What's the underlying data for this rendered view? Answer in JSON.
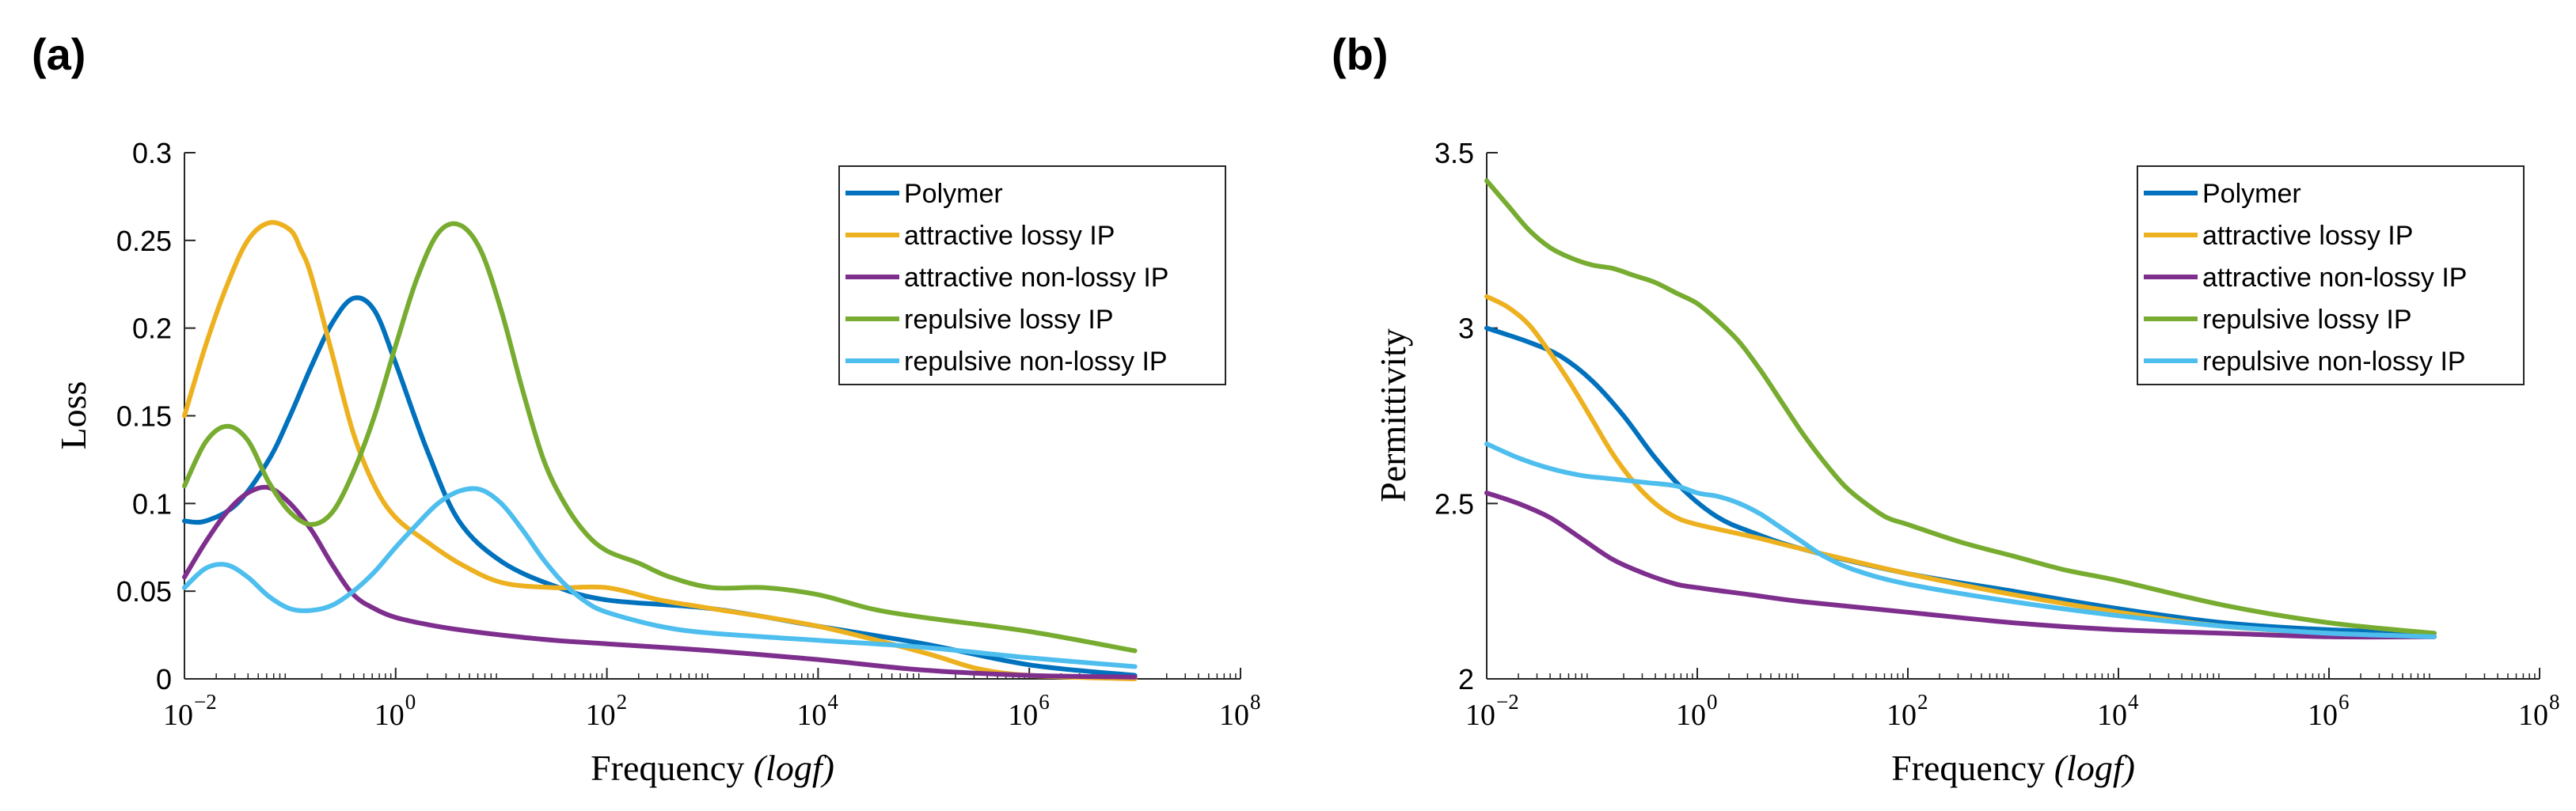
{
  "chart_data": [
    {
      "panel": "(a)",
      "type": "line",
      "xscale": "log",
      "xlabel": "Frequency",
      "xlabel_math": "(logf)",
      "ylabel": "Loss",
      "xlim_log10": [
        -2,
        8
      ],
      "xticks": [
        {
          "base": "10",
          "exp": "−2"
        },
        {
          "base": "10",
          "exp": "0"
        },
        {
          "base": "10",
          "exp": "2"
        },
        {
          "base": "10",
          "exp": "4"
        },
        {
          "base": "10",
          "exp": "6"
        },
        {
          "base": "10",
          "exp": "8"
        }
      ],
      "ylim": [
        0,
        0.3
      ],
      "yticks": [
        0,
        0.05,
        0.1,
        0.15,
        0.2,
        0.25,
        0.3
      ],
      "yticklabels": [
        "0",
        "0.05",
        "0.1",
        "0.15",
        "0.2",
        "0.25",
        "0.3"
      ],
      "legend_position": "top-right",
      "series": [
        {
          "name": "Polymer",
          "color": "#0072BD",
          "log10_x": [
            -2,
            -1.8,
            -1.5,
            -1.2,
            -1,
            -0.8,
            -0.6,
            -0.4,
            -0.2,
            0,
            0.3,
            0.6,
            1,
            1.5,
            2,
            3,
            4,
            5,
            6,
            7
          ],
          "y": [
            0.09,
            0.09,
            0.1,
            0.125,
            0.15,
            0.178,
            0.203,
            0.217,
            0.21,
            0.18,
            0.13,
            0.09,
            0.067,
            0.053,
            0.045,
            0.04,
            0.03,
            0.02,
            0.008,
            0.002
          ]
        },
        {
          "name": "attractive lossy IP",
          "color": "#EDB120",
          "log10_x": [
            -2,
            -1.8,
            -1.6,
            -1.4,
            -1.2,
            -1,
            -0.9,
            -0.8,
            -0.6,
            -0.4,
            -0.2,
            0,
            0.3,
            0.6,
            1,
            1.5,
            2,
            2.5,
            3,
            4,
            5,
            5.5,
            6,
            7
          ],
          "y": [
            0.15,
            0.19,
            0.224,
            0.25,
            0.26,
            0.256,
            0.245,
            0.23,
            0.185,
            0.14,
            0.11,
            0.092,
            0.078,
            0.066,
            0.055,
            0.052,
            0.052,
            0.045,
            0.04,
            0.03,
            0.015,
            0.006,
            0.002,
            0
          ]
        },
        {
          "name": "attractive non-lossy IP",
          "color": "#7E2F8E",
          "log10_x": [
            -2,
            -1.8,
            -1.6,
            -1.4,
            -1.2,
            -1,
            -0.8,
            -0.6,
            -0.4,
            -0.2,
            0,
            0.3,
            0.6,
            1,
            1.5,
            2,
            3,
            4,
            5,
            6,
            7
          ],
          "y": [
            0.058,
            0.078,
            0.095,
            0.106,
            0.109,
            0.1,
            0.085,
            0.065,
            0.048,
            0.04,
            0.035,
            0.031,
            0.028,
            0.025,
            0.022,
            0.02,
            0.016,
            0.011,
            0.005,
            0.002,
            0.001
          ]
        },
        {
          "name": "repulsive lossy IP",
          "color": "#77AC30",
          "log10_x": [
            -2,
            -1.8,
            -1.6,
            -1.4,
            -1.2,
            -1,
            -0.8,
            -0.6,
            -0.4,
            -0.2,
            0,
            0.2,
            0.4,
            0.6,
            0.8,
            1,
            1.2,
            1.4,
            1.6,
            1.8,
            2,
            2.3,
            2.6,
            3,
            3.5,
            4,
            4.5,
            5,
            6,
            7
          ],
          "y": [
            0.11,
            0.135,
            0.144,
            0.136,
            0.112,
            0.095,
            0.088,
            0.095,
            0.118,
            0.15,
            0.19,
            0.228,
            0.254,
            0.259,
            0.245,
            0.21,
            0.165,
            0.125,
            0.1,
            0.083,
            0.073,
            0.066,
            0.058,
            0.052,
            0.052,
            0.048,
            0.04,
            0.035,
            0.027,
            0.016
          ]
        },
        {
          "name": "repulsive non-lossy IP",
          "color": "#4DBEEE",
          "log10_x": [
            -2,
            -1.8,
            -1.6,
            -1.4,
            -1.2,
            -1,
            -0.8,
            -0.6,
            -0.4,
            -0.2,
            0,
            0.2,
            0.4,
            0.6,
            0.8,
            1,
            1.2,
            1.4,
            1.6,
            1.8,
            2,
            2.5,
            3,
            4,
            5,
            6,
            7
          ],
          "y": [
            0.052,
            0.063,
            0.065,
            0.058,
            0.047,
            0.04,
            0.039,
            0.042,
            0.05,
            0.061,
            0.075,
            0.088,
            0.1,
            0.107,
            0.108,
            0.1,
            0.085,
            0.068,
            0.054,
            0.044,
            0.038,
            0.03,
            0.026,
            0.022,
            0.018,
            0.012,
            0.007
          ]
        }
      ]
    },
    {
      "panel": "(b)",
      "type": "line",
      "xscale": "log",
      "xlabel": "Frequency",
      "xlabel_math": "(logf)",
      "ylabel": "Permittivity",
      "xlim_log10": [
        -2,
        8
      ],
      "xticks": [
        {
          "base": "10",
          "exp": "−2"
        },
        {
          "base": "10",
          "exp": "0"
        },
        {
          "base": "10",
          "exp": "2"
        },
        {
          "base": "10",
          "exp": "4"
        },
        {
          "base": "10",
          "exp": "6"
        },
        {
          "base": "10",
          "exp": "8"
        }
      ],
      "ylim": [
        2,
        3.5
      ],
      "yticks": [
        2,
        2.5,
        3,
        3.5
      ],
      "yticklabels": [
        "2",
        "2.5",
        "3",
        "3.5"
      ],
      "legend_position": "top-right",
      "series": [
        {
          "name": "Polymer",
          "color": "#0072BD",
          "log10_x": [
            -2,
            -1.6,
            -1.3,
            -1,
            -0.7,
            -0.4,
            -0.1,
            0.2,
            0.5,
            1,
            2,
            3,
            4,
            5,
            6,
            7
          ],
          "y": [
            3.0,
            2.96,
            2.92,
            2.85,
            2.75,
            2.63,
            2.53,
            2.46,
            2.42,
            2.37,
            2.3,
            2.25,
            2.2,
            2.16,
            2.14,
            2.13
          ]
        },
        {
          "name": "attractive lossy IP",
          "color": "#EDB120",
          "log10_x": [
            -2,
            -1.8,
            -1.6,
            -1.4,
            -1.2,
            -1,
            -0.8,
            -0.6,
            -0.4,
            -0.2,
            0,
            0.3,
            0.6,
            1,
            2,
            3,
            4,
            5,
            6,
            7
          ],
          "y": [
            3.09,
            3.06,
            3.01,
            2.93,
            2.84,
            2.74,
            2.64,
            2.56,
            2.5,
            2.46,
            2.44,
            2.42,
            2.4,
            2.37,
            2.3,
            2.24,
            2.19,
            2.15,
            2.13,
            2.12
          ]
        },
        {
          "name": "attractive non-lossy IP",
          "color": "#7E2F8E",
          "log10_x": [
            -2,
            -1.7,
            -1.4,
            -1.1,
            -0.8,
            -0.5,
            -0.2,
            0,
            0.5,
            1,
            2,
            3,
            4,
            5,
            6,
            7
          ],
          "y": [
            2.53,
            2.5,
            2.46,
            2.4,
            2.34,
            2.3,
            2.27,
            2.26,
            2.24,
            2.22,
            2.19,
            2.16,
            2.14,
            2.13,
            2.12,
            2.12
          ]
        },
        {
          "name": "repulsive lossy IP",
          "color": "#77AC30",
          "log10_x": [
            -2,
            -1.8,
            -1.6,
            -1.4,
            -1.2,
            -1,
            -0.8,
            -0.6,
            -0.4,
            -0.2,
            0,
            0.2,
            0.4,
            0.6,
            0.8,
            1,
            1.2,
            1.4,
            1.6,
            1.8,
            2,
            2.5,
            3,
            3.5,
            4,
            5,
            6,
            7
          ],
          "y": [
            3.42,
            3.35,
            3.28,
            3.23,
            3.2,
            3.18,
            3.17,
            3.15,
            3.13,
            3.1,
            3.07,
            3.02,
            2.96,
            2.88,
            2.79,
            2.7,
            2.62,
            2.55,
            2.5,
            2.46,
            2.44,
            2.39,
            2.35,
            2.31,
            2.28,
            2.21,
            2.16,
            2.13
          ]
        },
        {
          "name": "repulsive non-lossy IP",
          "color": "#4DBEEE",
          "log10_x": [
            -2,
            -1.7,
            -1.4,
            -1.1,
            -0.8,
            -0.5,
            -0.2,
            0,
            0.2,
            0.4,
            0.6,
            0.8,
            1,
            1.2,
            1.5,
            2,
            3,
            4,
            5,
            6,
            7
          ],
          "y": [
            2.67,
            2.63,
            2.6,
            2.58,
            2.57,
            2.56,
            2.55,
            2.53,
            2.52,
            2.5,
            2.47,
            2.43,
            2.39,
            2.35,
            2.31,
            2.27,
            2.22,
            2.18,
            2.15,
            2.13,
            2.12
          ]
        }
      ]
    }
  ]
}
